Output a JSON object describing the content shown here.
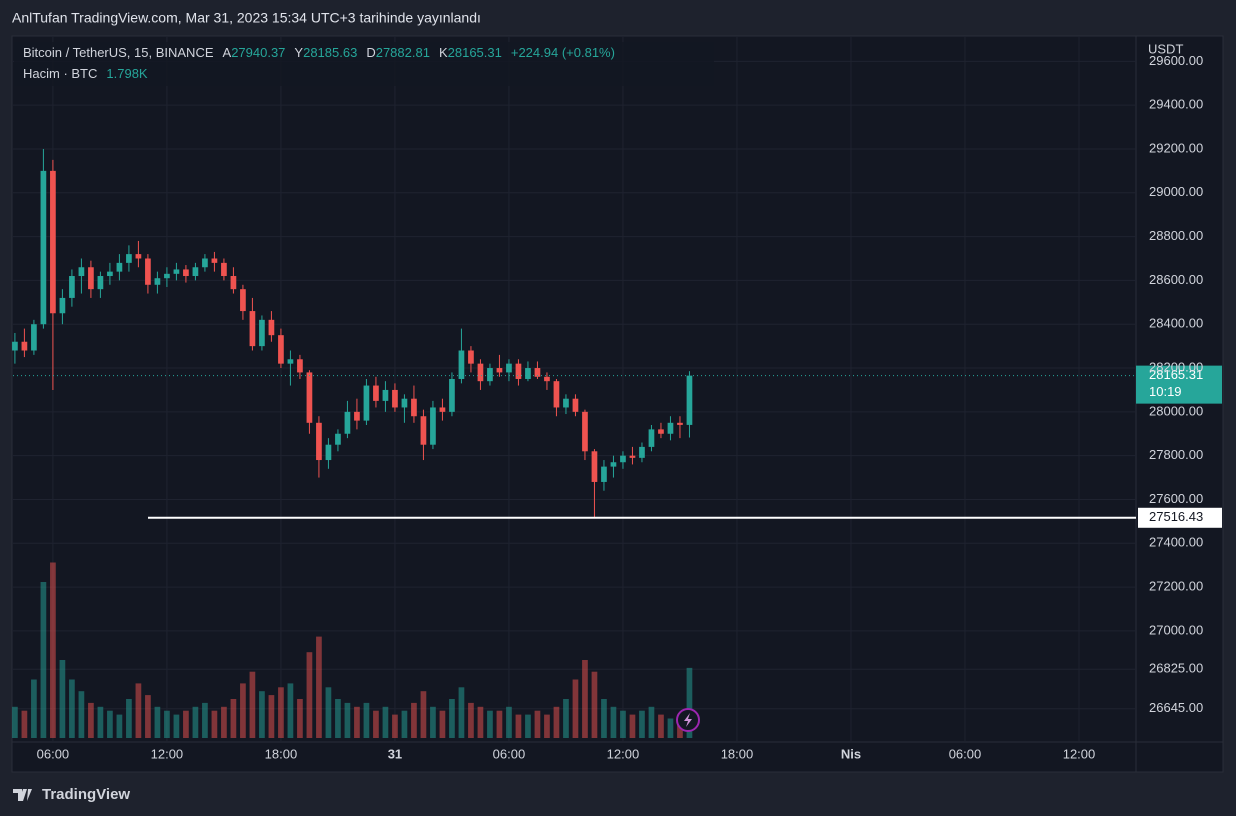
{
  "header": "AnlTufan TradingView.com, Mar 31, 2023 15:34 UTC+3 tarihinde yayınlandı",
  "footer": "TradingView",
  "chart_data": {
    "type": "candlestick",
    "title": "Bitcoin / TetherUS, 15, BINANCE",
    "ohlc_labels": [
      "A",
      "Y",
      "D",
      "K"
    ],
    "change": "+224.94 (+0.81%)",
    "volume_title": "Hacim · BTC",
    "volume_last_label": "1.798K",
    "currency": "USDT",
    "countdown": "10:19",
    "up_color": "#26a69a",
    "down_color": "#ef5350",
    "open": [
      28280,
      28320,
      28280,
      28400,
      29100,
      28450,
      28520,
      28620,
      28660,
      28560,
      28620,
      28640,
      28680,
      28720,
      28700,
      28580,
      28610,
      28630,
      28650,
      28620,
      28660,
      28700,
      28680,
      28620,
      28560,
      28460,
      28300,
      28420,
      28350,
      28220,
      28240,
      28180,
      27950,
      27780,
      27850,
      27900,
      28000,
      27960,
      28120,
      28050,
      28100,
      28020,
      28060,
      27980,
      27850,
      28020,
      28000,
      28150,
      28280,
      28220,
      28140,
      28200,
      28180,
      28220,
      28150,
      28200,
      28160,
      28140,
      28020,
      28060,
      28000,
      27820,
      27680,
      27750,
      27770,
      27800,
      27790,
      27840,
      27920,
      27900,
      27950,
      27940.37
    ],
    "high": [
      28360,
      28380,
      28420,
      29200,
      29150,
      28560,
      28650,
      28700,
      28690,
      28640,
      28680,
      28720,
      28760,
      28780,
      28720,
      28640,
      28660,
      28680,
      28670,
      28680,
      28720,
      28730,
      28700,
      28660,
      28580,
      28520,
      28440,
      28460,
      28380,
      28280,
      28260,
      28190,
      27980,
      27880,
      27920,
      28050,
      28060,
      28150,
      28160,
      28140,
      28130,
      28080,
      28120,
      28010,
      28050,
      28060,
      28180,
      28380,
      28300,
      28240,
      28220,
      28260,
      28240,
      28240,
      28230,
      28230,
      28180,
      28150,
      28080,
      28080,
      28010,
      27830,
      27780,
      27800,
      27820,
      27840,
      27860,
      27940,
      27950,
      27980,
      27980,
      28185.63
    ],
    "low": [
      28220,
      28250,
      28260,
      28380,
      28100,
      28400,
      28480,
      28540,
      28520,
      28520,
      28580,
      28600,
      28640,
      28660,
      28540,
      28540,
      28570,
      28600,
      28590,
      28600,
      28640,
      28640,
      28600,
      28540,
      28420,
      28280,
      28280,
      28320,
      28200,
      28120,
      28150,
      27900,
      27700,
      27740,
      27820,
      27880,
      27920,
      27940,
      28020,
      28000,
      28000,
      27950,
      27950,
      27780,
      27830,
      27960,
      27980,
      28130,
      28180,
      28100,
      28120,
      28160,
      28140,
      28120,
      28140,
      28150,
      28100,
      27980,
      27990,
      27980,
      27780,
      27516,
      27640,
      27700,
      27740,
      27760,
      27770,
      27820,
      27880,
      27870,
      27880,
      27882.81
    ],
    "close": [
      28320,
      28280,
      28400,
      29100,
      28450,
      28520,
      28620,
      28660,
      28560,
      28620,
      28640,
      28680,
      28720,
      28700,
      28580,
      28610,
      28630,
      28650,
      28620,
      28660,
      28700,
      28680,
      28620,
      28560,
      28460,
      28300,
      28420,
      28350,
      28220,
      28240,
      28180,
      27950,
      27780,
      27850,
      27900,
      28000,
      27960,
      28120,
      28050,
      28100,
      28020,
      28060,
      27980,
      27850,
      28020,
      28000,
      28150,
      28280,
      28220,
      28140,
      28200,
      28180,
      28220,
      28150,
      28200,
      28160,
      28140,
      28020,
      28060,
      28000,
      27820,
      27680,
      27750,
      27770,
      27800,
      27790,
      27840,
      27920,
      27900,
      27950,
      27940.37,
      28165.31
    ],
    "volume": [
      800,
      700,
      1500,
      4000,
      4500,
      2000,
      1500,
      1200,
      900,
      800,
      700,
      600,
      1000,
      1400,
      1100,
      800,
      700,
      600,
      700,
      800,
      900,
      700,
      800,
      1000,
      1400,
      1700,
      1200,
      1100,
      1300,
      1400,
      1000,
      2200,
      2600,
      1300,
      1000,
      900,
      800,
      900,
      700,
      800,
      600,
      700,
      900,
      1200,
      800,
      700,
      1000,
      1300,
      900,
      800,
      700,
      700,
      800,
      600,
      600,
      700,
      600,
      800,
      1000,
      1500,
      2000,
      1700,
      1000,
      800,
      700,
      600,
      700,
      800,
      600,
      500,
      600,
      1798
    ],
    "vlim": [
      0,
      5000
    ],
    "ylim": [
      26493,
      29711
    ],
    "yticks": [
      {
        "value": 29600,
        "label": "29600.00"
      },
      {
        "value": 29400,
        "label": "29400.00"
      },
      {
        "value": 29200,
        "label": "29200.00"
      },
      {
        "value": 29000,
        "label": "29000.00"
      },
      {
        "value": 28800,
        "label": "28800.00"
      },
      {
        "value": 28600,
        "label": "28600.00"
      },
      {
        "value": 28400,
        "label": "28400.00"
      },
      {
        "value": 28200,
        "label": "28200.00"
      },
      {
        "value": 28000,
        "label": "28000.00"
      },
      {
        "value": 27800,
        "label": "27800.00"
      },
      {
        "value": 27600,
        "label": "27600.00"
      },
      {
        "value": 27400,
        "label": "27400.00"
      },
      {
        "value": 27200,
        "label": "27200.00"
      },
      {
        "value": 27000,
        "label": "27000.00"
      },
      {
        "value": 26825,
        "label": "26825.00"
      },
      {
        "value": 26645,
        "label": "26645.00"
      }
    ],
    "xlim": [
      -0.2,
      118
    ],
    "xticks": [
      {
        "value": 4,
        "label": "06:00"
      },
      {
        "value": 16,
        "label": "12:00"
      },
      {
        "value": 28,
        "label": "18:00"
      },
      {
        "value": 40,
        "label": "31"
      },
      {
        "value": 52,
        "label": "06:00"
      },
      {
        "value": 64,
        "label": "12:00"
      },
      {
        "value": 76,
        "label": "18:00"
      },
      {
        "value": 88,
        "label": "Nis"
      },
      {
        "value": 100,
        "label": "06:00"
      },
      {
        "value": 112,
        "label": "12:00"
      }
    ],
    "hline": 27516.43,
    "grid": true
  }
}
